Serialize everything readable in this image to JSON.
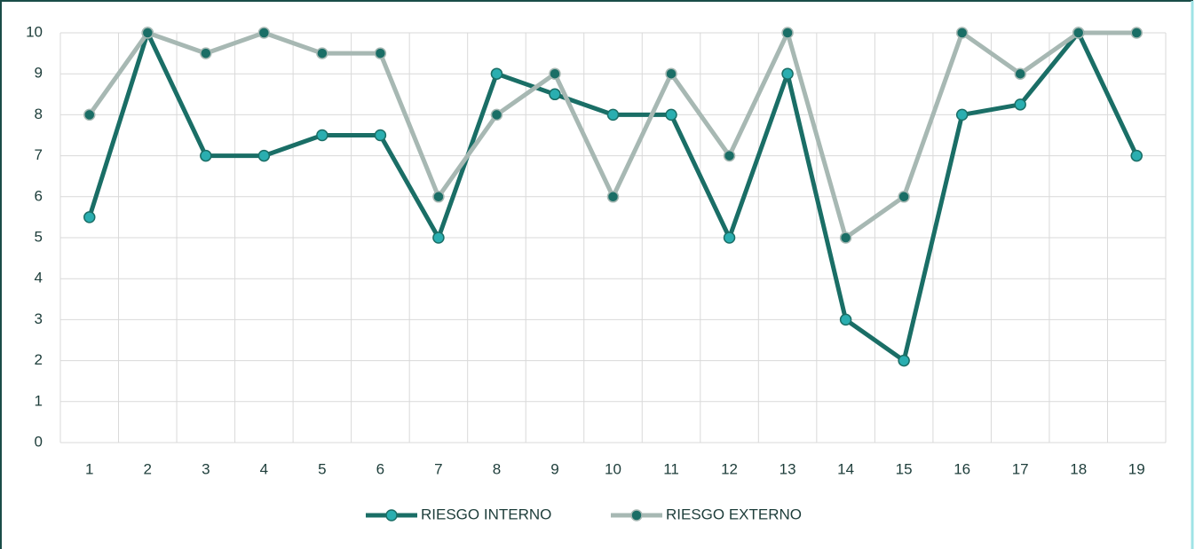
{
  "chart_data": {
    "type": "line",
    "categories": [
      "1",
      "2",
      "3",
      "4",
      "5",
      "6",
      "7",
      "8",
      "9",
      "10",
      "11",
      "12",
      "13",
      "14",
      "15",
      "16",
      "17",
      "18",
      "19"
    ],
    "series": [
      {
        "name": "RIESGO INTERNO",
        "color": "#1a6e66",
        "marker_color": "#2aaeb0",
        "values": [
          5.5,
          10,
          7,
          7,
          7.5,
          7.5,
          5,
          9,
          8.5,
          8,
          8,
          5,
          9,
          3,
          2,
          8,
          8.25,
          10,
          7
        ]
      },
      {
        "name": "RIESGO EXTERNO",
        "color": "#a7b8b3",
        "marker_color": "#1a6e66",
        "values": [
          8,
          10,
          9.5,
          10,
          9.5,
          9.5,
          6,
          8,
          9,
          6,
          9,
          7,
          10,
          5,
          6,
          10,
          9,
          10,
          10
        ]
      }
    ],
    "ylim": [
      0,
      10
    ],
    "yticks": [
      0,
      1,
      2,
      3,
      4,
      5,
      6,
      7,
      8,
      9,
      10
    ],
    "grid": true,
    "legend": "bottom"
  }
}
